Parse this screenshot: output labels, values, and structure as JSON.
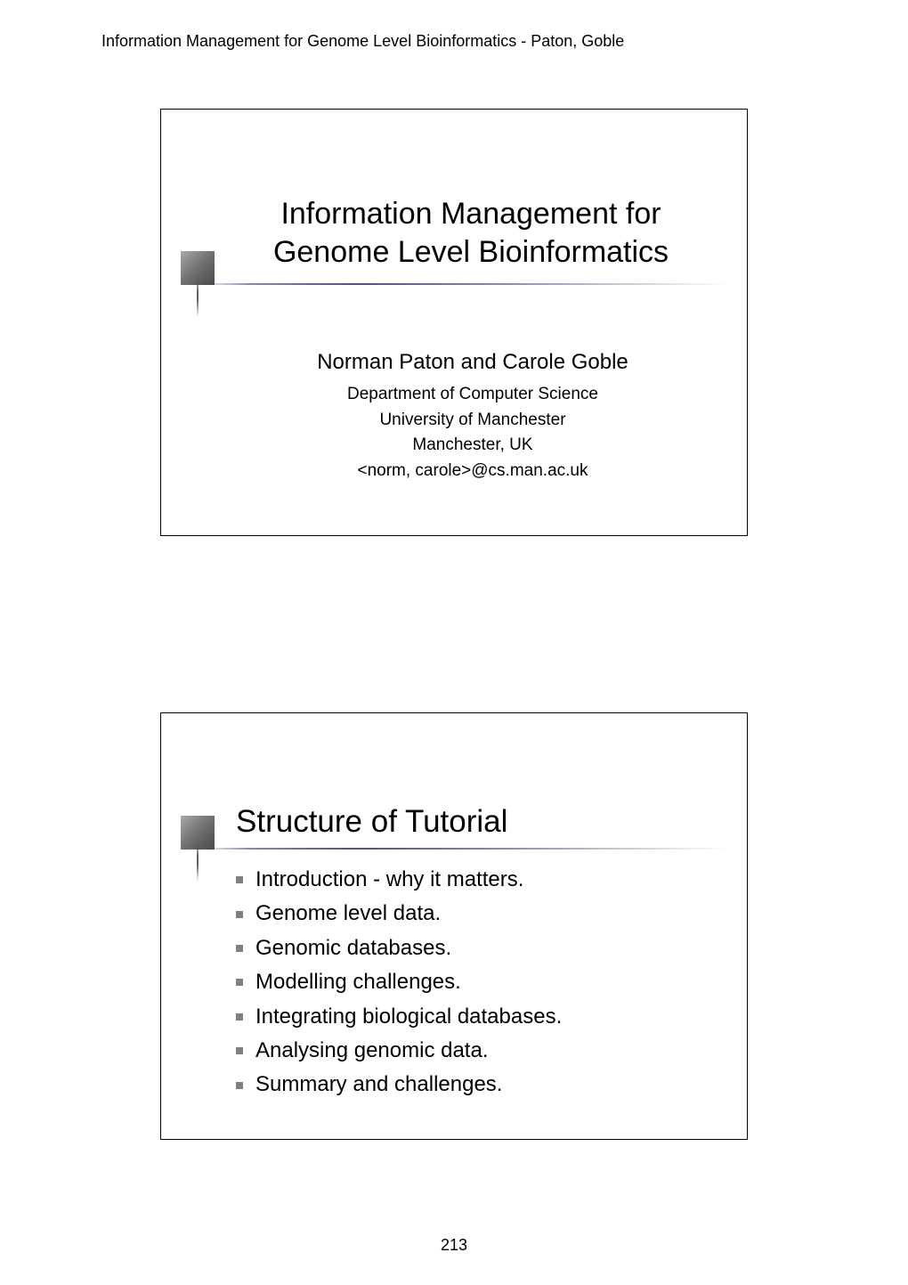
{
  "header": "Information Management for Genome Level Bioinformatics - Paton, Goble",
  "slide1": {
    "title_line1": "Information Management for",
    "title_line2": "Genome Level Bioinformatics",
    "subtitle": "Norman Paton and Carole Goble",
    "dept_line1": "Department of Computer Science",
    "dept_line2": "University of Manchester",
    "dept_line3": "Manchester, UK",
    "dept_line4": "<norm, carole>@cs.man.ac.uk"
  },
  "slide2": {
    "title": "Structure of Tutorial",
    "items": [
      "Introduction - why it matters.",
      "Genome level data.",
      "Genomic databases.",
      "Modelling challenges.",
      "Integrating biological databases.",
      "Analysing genomic data.",
      "Summary and challenges."
    ]
  },
  "page_number": "213",
  "colors": {
    "page_bg": "#ffffff",
    "text": "#000000",
    "bullet": "#808080",
    "border": "#000000"
  },
  "fonts": {
    "body": "Verdana, Geneva, sans-serif",
    "header_size": 18,
    "title_size": 34,
    "subtitle_size": 24,
    "dept_size": 19,
    "list_size": 24,
    "page_num_size": 18
  }
}
